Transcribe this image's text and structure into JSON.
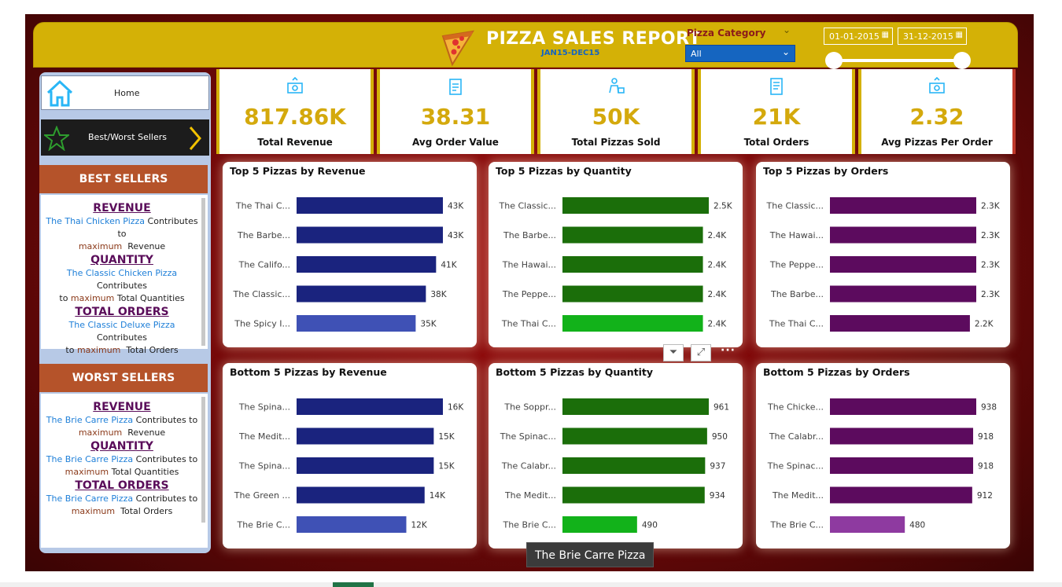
{
  "header": {
    "title": "PIZZA SALES REPORT",
    "subtitle": "JAN15-DEC15",
    "category_label": "Pizza Category",
    "category_value": "All",
    "date_start": "01-01-2015",
    "date_end": "31-12-2015"
  },
  "nav": {
    "home_label": "Home",
    "bw_label": "Best/Worst Sellers"
  },
  "best": {
    "heading": "BEST SELLERS",
    "rev_head": "REVENUE",
    "rev_pizza": "The Thai Chicken Pizza",
    "rev_contrib": "Contributes to",
    "rev_max": "maximum",
    "rev_tail": "Revenue",
    "qty_head": "QUANTITY",
    "qty_pizza": "The Classic Chicken Pizza",
    "qty_contrib": "Contributes",
    "qty_to": "to",
    "qty_max": "maximum",
    "qty_tail": "Total Quantities",
    "ord_head": "TOTAL ORDERS",
    "ord_pizza": "The Classic Deluxe Pizza",
    "ord_contrib": "Contributes",
    "ord_to": "to",
    "ord_max": "maximum",
    "ord_tail": "Total Orders"
  },
  "worst": {
    "heading": "WORST SELLERS",
    "rev_head": "REVENUE",
    "rev_pizza": "The Brie Carre Pizza",
    "rev_contrib": "Contributes to",
    "rev_max": "maximum",
    "rev_tail": "Revenue",
    "qty_head": "QUANTITY",
    "qty_pizza": "The Brie Carre Pizza",
    "qty_contrib": "Contributes to",
    "qty_max": "maximum",
    "qty_tail": "Total Quantities",
    "ord_head": "TOTAL ORDERS",
    "ord_pizza": "The Brie Carre Pizza",
    "ord_contrib": "Contributes to",
    "ord_max": "maximum",
    "ord_tail": "Total Orders"
  },
  "kpis": [
    {
      "value": "817.86K",
      "label": "Total Revenue",
      "icon": "money-icon"
    },
    {
      "value": "38.31",
      "label": "Avg Order Value",
      "icon": "clipboard-icon"
    },
    {
      "value": "50K",
      "label": "Total Pizzas Sold",
      "icon": "delivery-icon"
    },
    {
      "value": "21K",
      "label": "Total Orders",
      "icon": "checklist-icon"
    },
    {
      "value": "2.32",
      "label": "Avg Pizzas Per Order",
      "icon": "money-icon"
    }
  ],
  "colors": {
    "yellow": "#d4b106",
    "navy": "#1a237e",
    "navy_hi": "#3f51b5",
    "green": "#1b6e0a",
    "green_hi": "#12b21a",
    "purple": "#5c0b5e",
    "purple_hi": "#8e3aa0"
  },
  "tooltip": "The Brie Carre Pizza",
  "chart_data": [
    {
      "type": "bar",
      "title": "Top 5 Pizzas by Revenue",
      "color": "navy",
      "categories": [
        "The Thai C...",
        "The Barbe...",
        "The Califo...",
        "The Classic...",
        "The Spicy I..."
      ],
      "values": [
        43,
        43,
        41,
        38,
        35
      ],
      "labels": [
        "43K",
        "43K",
        "41K",
        "38K",
        "35K"
      ],
      "highlight": 4
    },
    {
      "type": "bar",
      "title": "Top 5 Pizzas by Quantity",
      "color": "green",
      "categories": [
        "The Classic...",
        "The Barbe...",
        "The Hawai...",
        "The Peppe...",
        "The Thai C..."
      ],
      "values": [
        2.5,
        2.4,
        2.4,
        2.4,
        2.4
      ],
      "labels": [
        "2.5K",
        "2.4K",
        "2.4K",
        "2.4K",
        "2.4K"
      ],
      "highlight": 4
    },
    {
      "type": "bar",
      "title": "Top 5 Pizzas by Orders",
      "color": "purple",
      "categories": [
        "The Classic...",
        "The Hawai...",
        "The Peppe...",
        "The Barbe...",
        "The Thai C..."
      ],
      "values": [
        2.3,
        2.3,
        2.3,
        2.3,
        2.2
      ],
      "labels": [
        "2.3K",
        "2.3K",
        "2.3K",
        "2.3K",
        "2.2K"
      ],
      "highlight": -1
    },
    {
      "type": "bar",
      "title": "Bottom 5 Pizzas by Revenue",
      "color": "navy",
      "categories": [
        "The Spina...",
        "The Medit...",
        "The Spina...",
        "The Green ...",
        "The Brie C..."
      ],
      "values": [
        16,
        15,
        15,
        14,
        12
      ],
      "labels": [
        "16K",
        "15K",
        "15K",
        "14K",
        "12K"
      ],
      "highlight": 4
    },
    {
      "type": "bar",
      "title": "Bottom 5 Pizzas by Quantity",
      "color": "green",
      "categories": [
        "The Soppr...",
        "The Spinac...",
        "The Calabr...",
        "The Medit...",
        "The Brie C..."
      ],
      "values": [
        961,
        950,
        937,
        934,
        490
      ],
      "labels": [
        "961",
        "950",
        "937",
        "934",
        "490"
      ],
      "highlight": 4
    },
    {
      "type": "bar",
      "title": "Bottom 5 Pizzas by Orders",
      "color": "purple",
      "categories": [
        "The Chicke...",
        "The Calabr...",
        "The Spinac...",
        "The Medit...",
        "The Brie C..."
      ],
      "values": [
        938,
        918,
        918,
        912,
        480
      ],
      "labels": [
        "938",
        "918",
        "918",
        "912",
        "480"
      ],
      "highlight": 4
    }
  ]
}
